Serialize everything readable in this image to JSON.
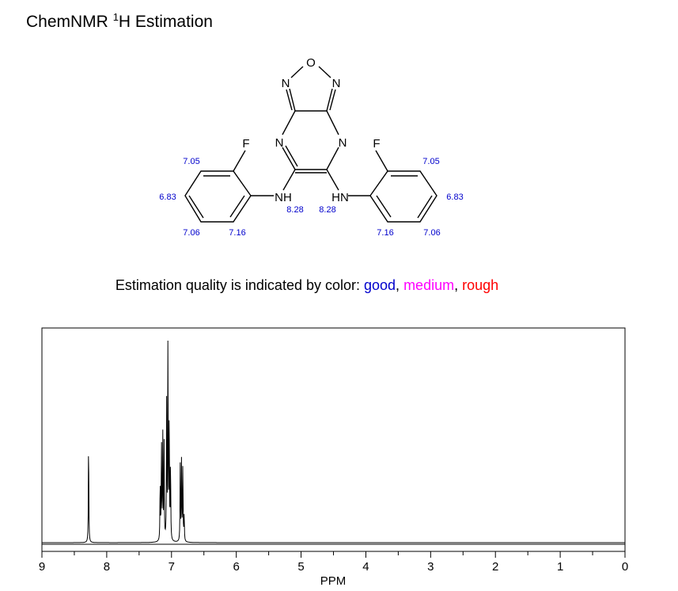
{
  "header": {
    "title_prefix": "ChemNMR ",
    "title_sup": "1",
    "title_suffix": "H Estimation"
  },
  "molecule": {
    "atoms": {
      "o": "O",
      "n_left_oxa": "N",
      "n_right_oxa": "N",
      "n_left_pyr": "N",
      "n_right_pyr": "N",
      "nh_left": "NH",
      "nh_right": "HN",
      "f_left": "F",
      "f_right": "F"
    },
    "shifts": {
      "left_nh": "8.28",
      "right_nh": "8.28",
      "left_ortho": "7.05",
      "left_meta": "6.83",
      "left_para": "7.06",
      "left_ortho2": "7.16",
      "right_ortho": "7.05",
      "right_meta": "6.83",
      "right_para": "7.06",
      "right_ortho2": "7.16"
    },
    "shift_color": "#0000cc"
  },
  "quality_legend": {
    "prefix": "Estimation quality is indicated by color: ",
    "good": "good",
    "sep1": ", ",
    "medium": "medium",
    "sep2": ", ",
    "rough": "rough",
    "colors": {
      "good": "#0000cc",
      "medium": "#ff00ff",
      "rough": "#ff0000"
    }
  },
  "chart_data": {
    "type": "line",
    "xlabel": "PPM",
    "xlim": [
      9,
      0
    ],
    "x_reversed": true,
    "x_ticks": [
      "9",
      "8",
      "7",
      "6",
      "5",
      "4",
      "3",
      "2",
      "1",
      "0"
    ],
    "grid": false,
    "peaks": [
      {
        "ppm": 8.28,
        "height": 0.53
      },
      {
        "ppm": 7.175,
        "height": 0.3
      },
      {
        "ppm": 7.155,
        "height": 0.51
      },
      {
        "ppm": 7.135,
        "height": 0.54
      },
      {
        "ppm": 7.115,
        "height": 0.48
      },
      {
        "ppm": 7.075,
        "height": 0.68
      },
      {
        "ppm": 7.055,
        "height": 1.0
      },
      {
        "ppm": 7.035,
        "height": 0.6
      },
      {
        "ppm": 7.015,
        "height": 0.4
      },
      {
        "ppm": 6.865,
        "height": 0.38
      },
      {
        "ppm": 6.845,
        "height": 0.41
      },
      {
        "ppm": 6.825,
        "height": 0.39
      },
      {
        "ppm": 6.805,
        "height": 0.14
      }
    ]
  }
}
